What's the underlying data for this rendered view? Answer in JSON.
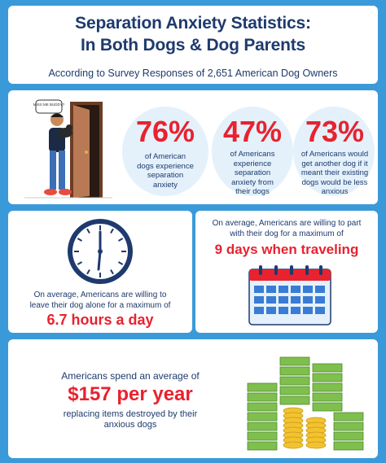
{
  "colors": {
    "background": "#3a9ad9",
    "navy": "#1e3a6e",
    "red": "#e8222f",
    "light_blue": "#e4f1fb"
  },
  "header": {
    "title_line1": "Separation Anxiety Statistics:",
    "title_line2": "In Both Dogs & Dog Parents",
    "subtitle": "According to Survey Responses of 2,651 American Dog Owners"
  },
  "stats": [
    {
      "percent": "76%",
      "desc_lines": [
        "of American",
        "dogs experience",
        "separation",
        "anxiety"
      ]
    },
    {
      "percent": "47%",
      "desc_lines": [
        "of Americans",
        "experience",
        "separation",
        "anxiety from",
        "their dogs"
      ]
    },
    {
      "percent": "73%",
      "desc_lines": [
        "of Americans would",
        "get another dog if it",
        "meant their existing",
        "dogs would be less",
        "anxious"
      ]
    }
  ],
  "illustration": {
    "sign_text": "MISS ME BUDDY?"
  },
  "clock_card": {
    "desc_line1": "On average, Americans are willing to",
    "desc_line2": "leave their dog alone for a maximum of",
    "value": "6.7 hours a day"
  },
  "calendar_card": {
    "desc_line1": "On average, Americans are willing to part",
    "desc_line2": "with their dog for a maximum of",
    "value": "9 days when traveling"
  },
  "money_card": {
    "line1": "Americans spend an average of",
    "value": "$157 per year",
    "line3a": "replacing items destroyed by their",
    "line3b": "anxious dogs"
  }
}
